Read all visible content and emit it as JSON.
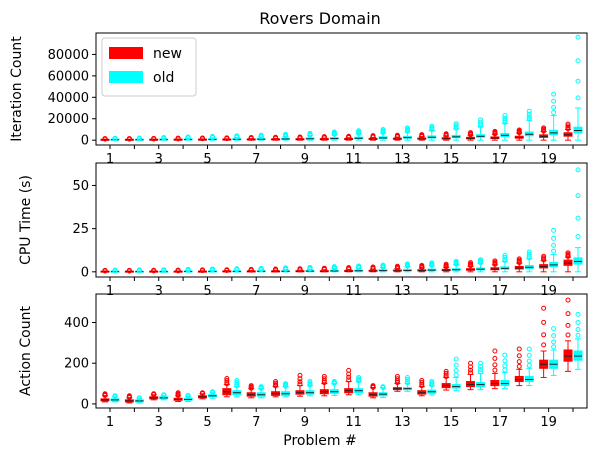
{
  "chart_data": {
    "type": "boxplot",
    "title": "Rovers Domain",
    "xlabel": "Problem #",
    "legend": {
      "placement": "upper-left",
      "entries": [
        {
          "name": "new",
          "color": "#ff0000"
        },
        {
          "name": "old",
          "color": "#00ffff"
        }
      ]
    },
    "categories": [
      1,
      2,
      3,
      4,
      5,
      6,
      7,
      8,
      9,
      10,
      11,
      12,
      13,
      14,
      15,
      16,
      17,
      18,
      19,
      20
    ],
    "x_tick_labels": [
      "1",
      "3",
      "5",
      "7",
      "9",
      "11",
      "13",
      "15",
      "17",
      "19"
    ],
    "panels": [
      {
        "ylabel": "Iteration Count",
        "ylim": [
          -4500,
          100000
        ],
        "yticks": [
          0,
          20000,
          40000,
          60000,
          80000
        ],
        "ytick_labels": [
          "0",
          "20000",
          "40000",
          "60000",
          "80000"
        ],
        "series": [
          {
            "name": "new",
            "medians": [
              300,
              300,
              350,
              400,
              450,
              500,
              550,
              600,
              700,
              800,
              900,
              1000,
              1100,
              1200,
              1400,
              1700,
              2000,
              2500,
              3500,
              5000
            ],
            "whisker_low": [
              0,
              0,
              0,
              0,
              0,
              0,
              0,
              0,
              0,
              0,
              0,
              0,
              0,
              0,
              0,
              0,
              0,
              0,
              0,
              0
            ],
            "whisker_high": [
              900,
              900,
              1000,
              1100,
              1200,
              1300,
              1500,
              1600,
              1800,
              2000,
              2300,
              2600,
              2900,
              3200,
              3800,
              4600,
              5500,
              6500,
              8000,
              10000
            ],
            "outlier_max": [
              1500,
              1500,
              1700,
              1900,
              2000,
              2200,
              2500,
              2700,
              3000,
              3300,
              3700,
              4200,
              4600,
              5200,
              6000,
              7000,
              8200,
              9500,
              11500,
              15000
            ]
          },
          {
            "name": "old",
            "medians": [
              400,
              400,
              500,
              600,
              700,
              800,
              900,
              1100,
              1300,
              1500,
              1800,
              2100,
              2400,
              2700,
              3100,
              3600,
              4500,
              5500,
              6800,
              9000
            ],
            "whisker_low": [
              0,
              0,
              0,
              0,
              0,
              0,
              0,
              0,
              0,
              0,
              0,
              0,
              0,
              0,
              0,
              0,
              0,
              0,
              0,
              0
            ],
            "whisker_high": [
              1200,
              1300,
              1600,
              1900,
              2200,
              2600,
              3000,
              3500,
              4200,
              5000,
              5800,
              6700,
              7800,
              9000,
              10500,
              12500,
              15500,
              18500,
              23000,
              30000
            ],
            "outlier_max": [
              1800,
              2000,
              2500,
              3000,
              3500,
              4000,
              4600,
              5400,
              6400,
              7600,
              8800,
              10000,
              11500,
              13000,
              15500,
              19000,
              23000,
              27000,
              43000,
              96000
            ]
          }
        ]
      },
      {
        "ylabel": "CPU Time (s)",
        "ylim": [
          -3,
          63
        ],
        "yticks": [
          0,
          25,
          50
        ],
        "ytick_labels": [
          "0",
          "25",
          "50"
        ],
        "series": [
          {
            "name": "new",
            "medians": [
              0.1,
              0.1,
              0.1,
              0.1,
              0.1,
              0.2,
              0.2,
              0.2,
              0.3,
              0.3,
              0.4,
              0.5,
              0.6,
              0.7,
              0.9,
              1.2,
              1.6,
              2.2,
              3.0,
              5.0
            ],
            "whisker_low": [
              0,
              0,
              0,
              0,
              0,
              0,
              0,
              0,
              0,
              0,
              0,
              0,
              0,
              0,
              0,
              0,
              0,
              0,
              0,
              0
            ],
            "whisker_high": [
              0.4,
              0.4,
              0.5,
              0.5,
              0.6,
              0.7,
              0.8,
              0.9,
              1.0,
              1.2,
              1.4,
              1.6,
              1.9,
              2.2,
              2.6,
              3.2,
              4.0,
              5.0,
              6.5,
              8.5
            ],
            "outlier_max": [
              0.8,
              0.8,
              0.9,
              1.0,
              1.1,
              1.2,
              1.4,
              1.6,
              1.8,
              2.1,
              2.4,
              2.8,
              3.2,
              3.7,
              4.4,
              5.3,
              6.3,
              7.5,
              9.0,
              11.0
            ]
          },
          {
            "name": "old",
            "medians": [
              0.1,
              0.1,
              0.1,
              0.2,
              0.2,
              0.2,
              0.3,
              0.3,
              0.4,
              0.5,
              0.6,
              0.7,
              0.8,
              1.0,
              1.2,
              1.5,
              2.0,
              2.6,
              4.0,
              6.0
            ],
            "whisker_low": [
              0,
              0,
              0,
              0,
              0,
              0,
              0,
              0,
              0,
              0,
              0,
              0,
              0,
              0,
              0,
              0,
              0,
              0,
              0,
              0
            ],
            "whisker_high": [
              0.5,
              0.5,
              0.6,
              0.7,
              0.8,
              1.0,
              1.1,
              1.3,
              1.5,
              1.8,
              2.1,
              2.5,
              3.0,
              3.5,
              4.2,
              5.0,
              6.0,
              7.5,
              10.0,
              14.0
            ],
            "outlier_max": [
              1.0,
              1.1,
              1.2,
              1.4,
              1.6,
              1.8,
              2.0,
              2.3,
              2.6,
              3.0,
              3.4,
              3.9,
              4.5,
              5.2,
              6.0,
              7.0,
              9.5,
              11.5,
              24.0,
              59.0
            ]
          }
        ]
      },
      {
        "ylabel": "Action Count",
        "ylim": [
          -20,
          540
        ],
        "yticks": [
          0,
          200,
          400
        ],
        "ytick_labels": [
          "0",
          "200",
          "400"
        ],
        "series": [
          {
            "name": "new",
            "medians": [
              20,
              15,
              30,
              22,
              35,
              60,
              45,
              50,
              55,
              60,
              65,
              45,
              75,
              55,
              90,
              95,
              100,
              120,
              195,
              235
            ],
            "q1": [
              15,
              10,
              25,
              18,
              30,
              45,
              38,
              42,
              48,
              50,
              55,
              38,
              70,
              48,
              80,
              85,
              90,
              110,
              175,
              210
            ],
            "q3": [
              25,
              20,
              35,
              28,
              40,
              75,
              55,
              60,
              65,
              70,
              75,
              55,
              80,
              65,
              100,
              110,
              115,
              135,
              215,
              265
            ],
            "whisker_low": [
              10,
              5,
              20,
              12,
              25,
              35,
              30,
              35,
              38,
              40,
              45,
              30,
              62,
              40,
              68,
              70,
              75,
              90,
              130,
              160
            ],
            "whisker_high": [
              40,
              30,
              45,
              40,
              50,
              95,
              75,
              85,
              90,
              100,
              110,
              80,
              100,
              85,
              130,
              145,
              150,
              170,
              260,
              310
            ],
            "outlier_max": [
              50,
              40,
              50,
              55,
              55,
              125,
              90,
              110,
              140,
              135,
              165,
              90,
              135,
              115,
              160,
              200,
              260,
              270,
              470,
              510
            ]
          },
          {
            "name": "old",
            "medians": [
              20,
              15,
              30,
              22,
              40,
              55,
              45,
              50,
              55,
              60,
              65,
              48,
              75,
              60,
              85,
              95,
              100,
              120,
              195,
              235
            ],
            "q1": [
              15,
              10,
              25,
              18,
              35,
              45,
              38,
              42,
              48,
              52,
              55,
              40,
              70,
              52,
              78,
              85,
              90,
              110,
              175,
              215
            ],
            "q3": [
              25,
              20,
              35,
              28,
              45,
              65,
              55,
              60,
              65,
              70,
              75,
              55,
              80,
              68,
              95,
              105,
              115,
              135,
              215,
              260
            ],
            "whisker_low": [
              10,
              5,
              20,
              12,
              28,
              35,
              30,
              35,
              40,
              42,
              45,
              32,
              62,
              44,
              65,
              70,
              75,
              90,
              140,
              170
            ],
            "whisker_high": [
              35,
              28,
              42,
              38,
              55,
              85,
              75,
              85,
              90,
              100,
              110,
              80,
              100,
              90,
              130,
              150,
              155,
              175,
              265,
              320
            ],
            "outlier_max": [
              40,
              30,
              45,
              42,
              60,
              115,
              85,
              100,
              110,
              110,
              130,
              85,
              130,
              110,
              220,
              200,
              240,
              270,
              370,
              440
            ]
          }
        ]
      }
    ]
  }
}
